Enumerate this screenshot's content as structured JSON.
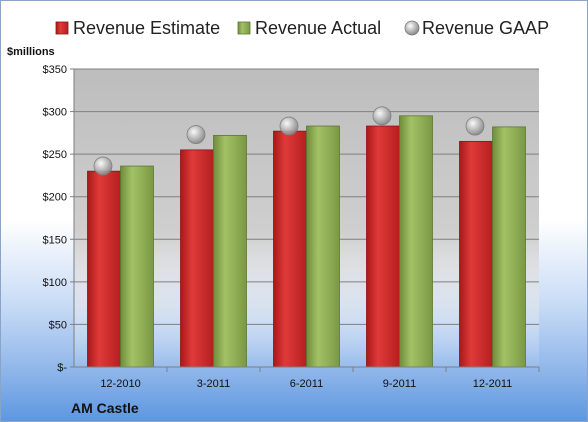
{
  "chart_data": {
    "type": "bar",
    "unit_label": "$millions",
    "categories": [
      "12-2010",
      "3-2011",
      "6-2011",
      "9-2011",
      "12-2011"
    ],
    "series": [
      {
        "name": "Revenue Estimate",
        "kind": "bar",
        "color": "#d42a2a",
        "values": [
          230,
          255,
          277,
          283,
          265
        ]
      },
      {
        "name": "Revenue Actual",
        "kind": "bar",
        "color": "#8fae52",
        "values": [
          236,
          272,
          283,
          295,
          282
        ]
      },
      {
        "name": "Revenue GAAP",
        "kind": "marker",
        "color": "#b8b8b8",
        "values": [
          236,
          273,
          283,
          295,
          283
        ]
      }
    ],
    "y_ticks": [
      0,
      50,
      100,
      150,
      200,
      250,
      300,
      350
    ],
    "y_tick_labels": [
      "$-",
      "$50",
      "$100",
      "$150",
      "$200",
      "$250",
      "$300",
      "$350"
    ],
    "ylim": [
      0,
      350
    ],
    "grid": true,
    "legend": "top",
    "company": "AM Castle"
  }
}
